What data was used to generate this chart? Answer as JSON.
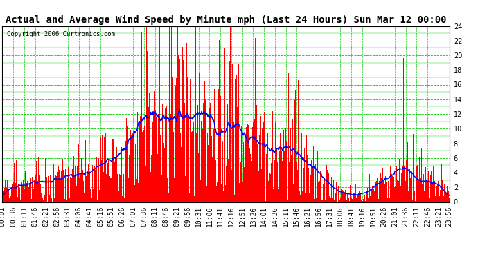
{
  "title": "Actual and Average Wind Speed by Minute mph (Last 24 Hours) Sun Mar 12 00:00",
  "copyright": "Copyright 2006 Curtronics.com",
  "ylim": [
    0.0,
    24.0
  ],
  "yticks": [
    0.0,
    2.0,
    4.0,
    6.0,
    8.0,
    10.0,
    12.0,
    14.0,
    16.0,
    18.0,
    20.0,
    22.0,
    24.0
  ],
  "background_color": "#ffffff",
  "plot_bg_color": "#ffffff",
  "grid_major_color": "#00cc00",
  "grid_minor_color": "#00cc00",
  "bar_color": "#ff0000",
  "line_color": "#0000ff",
  "title_fontsize": 10,
  "copyright_fontsize": 6.5,
  "tick_label_fontsize": 7,
  "num_minutes": 1440,
  "x_tick_labels": [
    "00:01",
    "00:36",
    "01:11",
    "01:46",
    "02:21",
    "02:56",
    "03:31",
    "04:06",
    "04:41",
    "05:16",
    "05:51",
    "06:26",
    "07:01",
    "07:36",
    "08:11",
    "08:46",
    "09:21",
    "09:56",
    "10:31",
    "11:06",
    "11:41",
    "12:16",
    "12:51",
    "13:26",
    "14:01",
    "14:36",
    "15:11",
    "15:46",
    "16:21",
    "16:56",
    "17:31",
    "18:06",
    "18:41",
    "19:16",
    "19:51",
    "20:26",
    "21:01",
    "21:36",
    "22:11",
    "22:46",
    "23:21",
    "23:56"
  ],
  "seed": 12345
}
